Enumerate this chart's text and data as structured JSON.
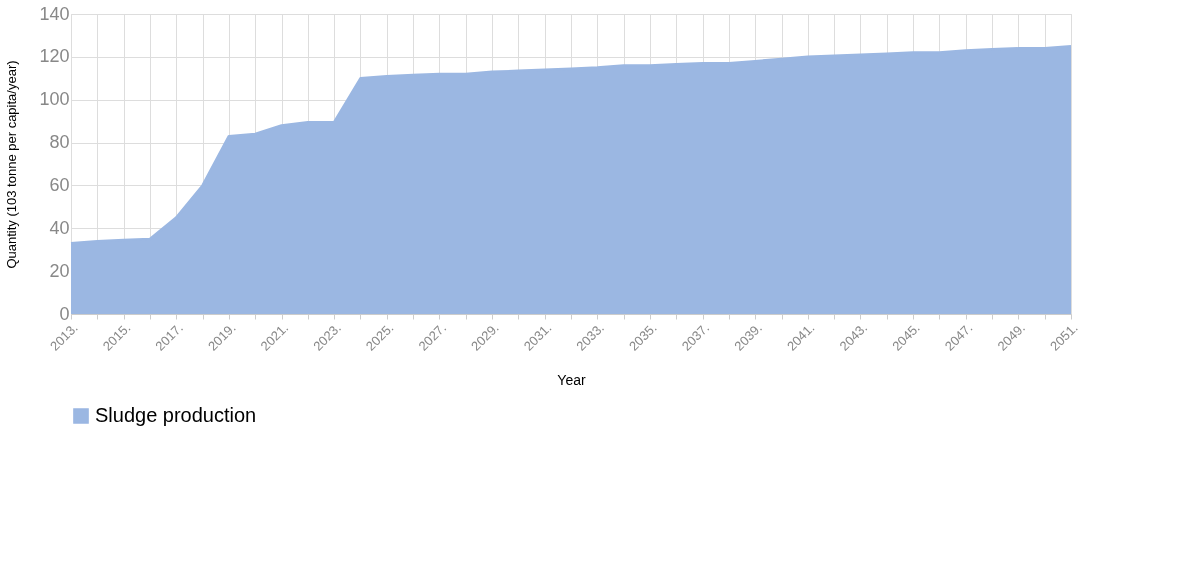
{
  "chart_data": {
    "type": "area",
    "xlabel": "Year",
    "ylabel": "Quantity (103 tonne per capita/year)",
    "categories": [
      "2013.",
      null,
      "2015.",
      null,
      "2017.",
      null,
      "2019.",
      null,
      "2021.",
      null,
      "2023.",
      null,
      "2025.",
      null,
      "2027.",
      null,
      "2029.",
      null,
      "2031.",
      null,
      "2033.",
      null,
      "2035.",
      null,
      "2037.",
      null,
      "2039.",
      null,
      "2041.",
      null,
      "2043.",
      null,
      "2045.",
      null,
      "2047.",
      null,
      "2049.",
      null,
      "2051."
    ],
    "series": [
      {
        "name": "Sludge production",
        "color": "#9bb7e2",
        "values": [
          33,
          34,
          34.5,
          35,
          45,
          60,
          83,
          84,
          88,
          89.5,
          89.5,
          110,
          111,
          111.5,
          112,
          112,
          113,
          113.5,
          114,
          114.5,
          115,
          116,
          116,
          116.5,
          117,
          117,
          118,
          119,
          120,
          120.5,
          121,
          121.5,
          122,
          122,
          123,
          123.5,
          124,
          124,
          125
        ]
      }
    ],
    "ylim": [
      0,
      140
    ],
    "yticks": [
      0,
      20,
      40,
      60,
      80,
      100,
      120,
      140
    ],
    "grid": true,
    "legend": "bottom"
  }
}
